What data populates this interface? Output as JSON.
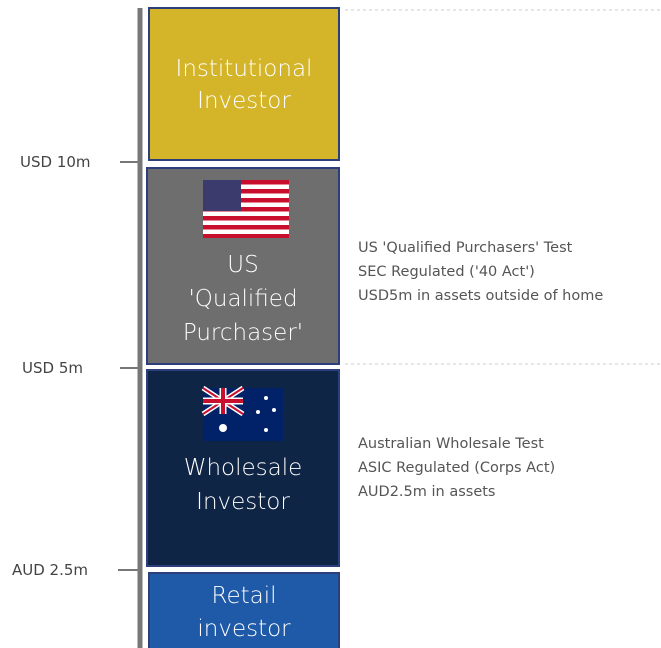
{
  "tiers": [
    {
      "lines": [
        "Institutional",
        "Investor"
      ]
    },
    {
      "lines": [
        "US",
        "'Qualified",
        "Purchaser'"
      ]
    },
    {
      "lines": [
        "Wholesale",
        "Investor"
      ]
    },
    {
      "lines": [
        "Retail",
        "investor"
      ]
    }
  ],
  "thresholds": [
    "USD 10m",
    "USD 5m",
    "AUD 2.5m"
  ],
  "descriptions": [
    {
      "lines": [
        "US 'Qualified Purchasers' Test",
        "SEC Regulated ('40 Act')",
        "USD5m in assets outside of home"
      ]
    },
    {
      "lines": [
        "Australian Wholesale Test",
        "ASIC Regulated (Corps Act)",
        "AUD2.5m in assets"
      ]
    }
  ]
}
